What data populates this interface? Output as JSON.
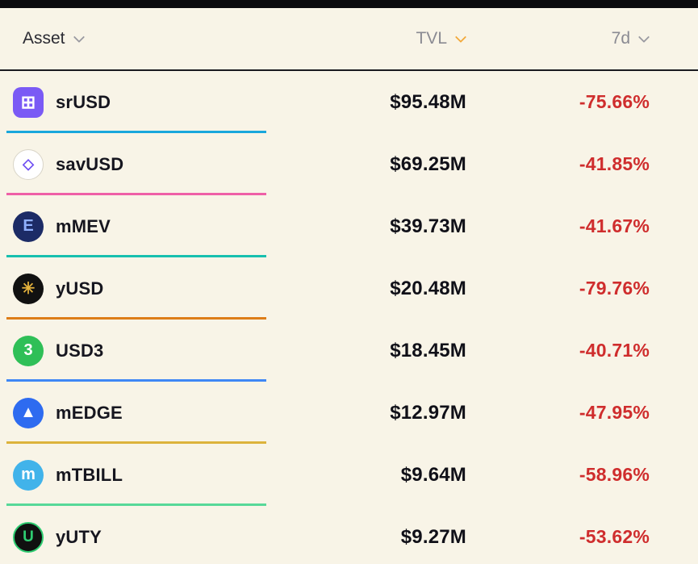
{
  "header": {
    "asset": {
      "label": "Asset"
    },
    "tvl": {
      "label": "TVL"
    },
    "change7d": {
      "label": "7d"
    }
  },
  "sort": {
    "active_column": "TVL",
    "direction": "desc"
  },
  "colors": {
    "background": "#f8f4e7",
    "negative": "#cf2d2d",
    "sort_chevron_active": "#f2a93b",
    "chevron_inactive": "#9a9aa1"
  },
  "rows": [
    {
      "name": "srUSD",
      "tvl": "$95.48M",
      "change7d": "-75.66%",
      "line_color": "#19a7dc",
      "icon": {
        "name": "srusd-logo",
        "bg": "#7a5af5",
        "fg": "#ffffff",
        "glyph": "⊞"
      }
    },
    {
      "name": "savUSD",
      "tvl": "$69.25M",
      "change7d": "-41.85%",
      "line_color": "#ee5fa7",
      "icon": {
        "name": "savusd-logo",
        "bg": "#ffffff",
        "fg": "#6d4df2",
        "glyph": "◇"
      }
    },
    {
      "name": "mMEV",
      "tvl": "$39.73M",
      "change7d": "-41.67%",
      "line_color": "#17bfae",
      "icon": {
        "name": "mmev-logo",
        "bg": "#1c2b66",
        "fg": "#8fb0ff",
        "glyph": "E"
      }
    },
    {
      "name": "yUSD",
      "tvl": "$20.48M",
      "change7d": "-79.76%",
      "line_color": "#dd7d18",
      "icon": {
        "name": "yusd-logo",
        "bg": "#111111",
        "fg": "#e4b23c",
        "glyph": "✳"
      }
    },
    {
      "name": "USD3",
      "tvl": "$18.45M",
      "change7d": "-40.71%",
      "line_color": "#3f87f5",
      "icon": {
        "name": "usd3-logo",
        "bg": "#2fbf57",
        "fg": "#ffffff",
        "glyph": "3"
      }
    },
    {
      "name": "mEDGE",
      "tvl": "$12.97M",
      "change7d": "-47.95%",
      "line_color": "#dcb33c",
      "icon": {
        "name": "medge-logo",
        "bg": "#2e6bf0",
        "fg": "#ffffff",
        "glyph": "▲"
      }
    },
    {
      "name": "mTBILL",
      "tvl": "$9.64M",
      "change7d": "-58.96%",
      "line_color": "#57d898",
      "icon": {
        "name": "mtbill-logo",
        "bg": "#41b3ea",
        "fg": "#ffffff",
        "glyph": "m"
      }
    },
    {
      "name": "yUTY",
      "tvl": "$9.27M",
      "change7d": "-53.62%",
      "line_color": null,
      "icon": {
        "name": "yuty-logo",
        "bg": "#101010",
        "fg": "#2ecc71",
        "glyph": "U"
      }
    }
  ]
}
